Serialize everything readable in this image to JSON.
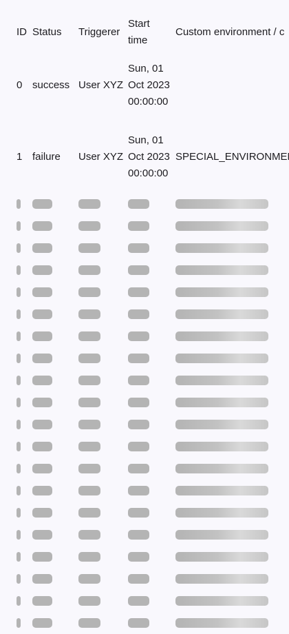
{
  "table": {
    "headers": {
      "id": "ID",
      "status": "Status",
      "triggerer": "Triggerer",
      "start_time": "Start time",
      "custom_environment": "Custom environment / c"
    },
    "rows": [
      {
        "id": "0",
        "status": "success",
        "triggerer": "User XYZ",
        "start_time": "Sun, 01 Oct 2023 00:00:00",
        "custom_environment": ""
      },
      {
        "id": "1",
        "status": "failure",
        "triggerer": "User XYZ",
        "start_time": "Sun, 01 Oct 2023 00:00:00",
        "custom_environment": "SPECIAL_ENVIRONMENT"
      }
    ],
    "loading_placeholder_row_count": 20
  },
  "colors": {
    "background": "#f9f8fd",
    "text": "#1c1b1f",
    "skeleton": "#b4b4b4"
  }
}
